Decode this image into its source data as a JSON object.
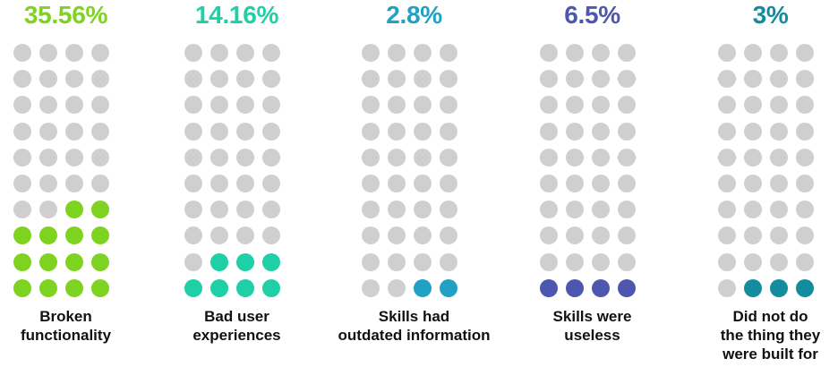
{
  "chart_data": {
    "type": "waffle",
    "grid": {
      "rows": 10,
      "cols": 4
    },
    "empty_color": "#cfcfcf",
    "groups": [
      {
        "percent_label": "35.56%",
        "value": 35.56,
        "filled_dots": 14,
        "color": "#7ed321",
        "label_lines": [
          "Broken",
          "functionality"
        ]
      },
      {
        "percent_label": "14.16%",
        "value": 14.16,
        "filled_dots": 7,
        "color": "#1fcfa5",
        "label_lines": [
          "Bad user",
          "experiences"
        ]
      },
      {
        "percent_label": "2.8%",
        "value": 2.8,
        "filled_dots": 2,
        "color": "#21a1c4",
        "label_lines": [
          "Skills had",
          "outdated information"
        ]
      },
      {
        "percent_label": "6.5%",
        "value": 6.5,
        "filled_dots": 4,
        "color": "#4e57b0",
        "label_lines": [
          "Skills were",
          "useless"
        ]
      },
      {
        "percent_label": "3%",
        "value": 3,
        "filled_dots": 3,
        "color": "#138d9e",
        "label_lines": [
          "Did not do",
          "the thing they",
          "were built for"
        ]
      }
    ]
  }
}
